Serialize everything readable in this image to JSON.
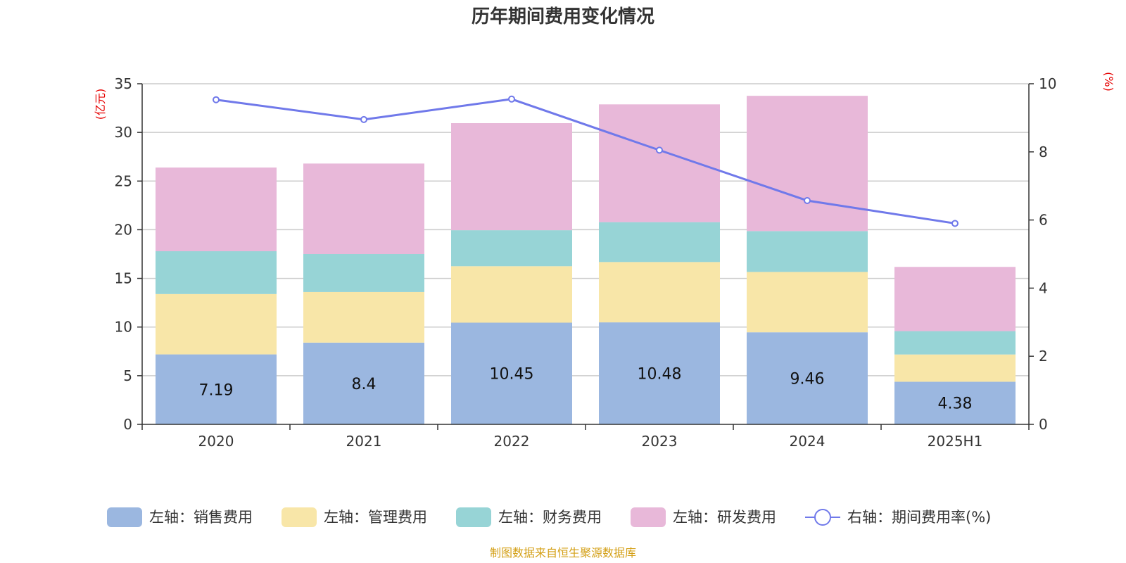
{
  "chart_data": {
    "type": "bar",
    "title": "历年期间费用变化情况",
    "categories": [
      "2020",
      "2021",
      "2022",
      "2023",
      "2024",
      "2025H1"
    ],
    "series": [
      {
        "name": "左轴：销售费用",
        "type": "bar",
        "axis": "left",
        "color": "#9bb7e0",
        "values": [
          7.19,
          8.4,
          10.45,
          10.48,
          9.46,
          4.38
        ]
      },
      {
        "name": "左轴：管理费用",
        "type": "bar",
        "axis": "left",
        "color": "#f8e6a8",
        "values": [
          6.2,
          5.2,
          5.8,
          6.2,
          6.2,
          2.8
        ]
      },
      {
        "name": "左轴：财务费用",
        "type": "bar",
        "axis": "left",
        "color": "#97d4d6",
        "values": [
          4.4,
          3.9,
          3.7,
          4.1,
          4.2,
          2.4
        ]
      },
      {
        "name": "左轴：研发费用",
        "type": "bar",
        "axis": "left",
        "color": "#e8b8d9",
        "values": [
          8.6,
          9.3,
          11.0,
          12.1,
          13.9,
          6.6
        ]
      },
      {
        "name": "右轴：期间费用率(%)",
        "type": "line",
        "axis": "right",
        "color": "#7079ea",
        "values": [
          9.53,
          8.95,
          9.55,
          8.05,
          6.57,
          5.9
        ]
      }
    ],
    "data_labels_series": "左轴：销售费用",
    "left_axis": {
      "unit": "(亿元)",
      "ylim": [
        0,
        35
      ],
      "ticks": [
        "0",
        "5",
        "10",
        "15",
        "20",
        "25",
        "30",
        "35"
      ]
    },
    "right_axis": {
      "unit": "(%)",
      "ylim": [
        0,
        10
      ],
      "ticks": [
        "0",
        "2",
        "4",
        "6",
        "8",
        "10"
      ]
    },
    "grid": true,
    "legend_position": "bottom",
    "source": "制图数据来自恒生聚源数据库"
  }
}
